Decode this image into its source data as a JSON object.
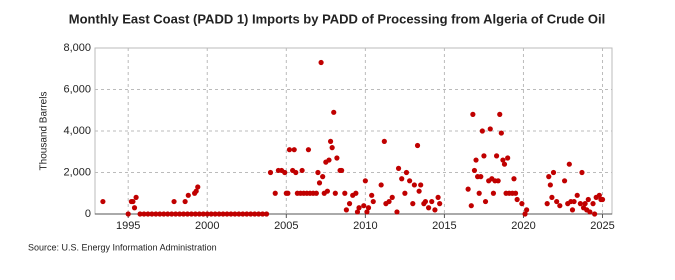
{
  "chart_data": {
    "type": "scatter",
    "title": "Monthly East Coast (PADD 1) Imports by PADD of Processing from Algeria of Crude Oil",
    "y_label": "Thousand Barrels",
    "source": "Source: U.S. Energy Information Administration",
    "grid": true,
    "xlim": [
      1992.9,
      2025.6
    ],
    "ylim": [
      0,
      8000
    ],
    "xticks": [
      1995,
      2000,
      2005,
      2010,
      2015,
      2020,
      2025
    ],
    "yticks": [
      0,
      {
        "value": 2000,
        "label": "2,000"
      },
      {
        "value": 4000,
        "label": "4,000"
      },
      {
        "value": 6000,
        "label": "6,000"
      },
      {
        "value": 8000,
        "label": "8,000"
      }
    ],
    "series": [
      {
        "color": "#c00000",
        "x": [
          1993.4,
          1995.0,
          1995.2,
          1995.3,
          1995.4,
          1995.5,
          1997.9,
          1998.6,
          1998.8,
          1999.2,
          1999.3,
          1999.4,
          1995.75,
          1996,
          1996.25,
          1996.5,
          1996.75,
          1997,
          1997.25,
          1997.5,
          1997.75,
          1998,
          1998.25,
          1998.5,
          1998.75,
          1999,
          1999.25,
          1999.5,
          1999.75,
          2000,
          2000.25,
          2000.5,
          2000.75,
          2001,
          2001.25,
          2001.5,
          2001.75,
          2002,
          2002.25,
          2002.5,
          2002.75,
          2003,
          2003.25,
          2003.5,
          2003.75,
          2004.0,
          2004.3,
          2004.5,
          2004.7,
          2004.9,
          2005.0,
          2005.1,
          2005.2,
          2005.4,
          2005.5,
          2005.6,
          2005.7,
          2005.9,
          2006.0,
          2006.1,
          2006.3,
          2006.4,
          2006.5,
          2006.7,
          2006.9,
          2007.0,
          2007.1,
          2007.2,
          2007.3,
          2007.4,
          2007.5,
          2007.6,
          2007.7,
          2007.8,
          2007.9,
          2008.0,
          2008.1,
          2008.2,
          2008.4,
          2008.5,
          2008.7,
          2008.8,
          2009.0,
          2009.2,
          2009.4,
          2009.5,
          2009.6,
          2009.9,
          2010.0,
          2010.1,
          2010.2,
          2010.4,
          2010.5,
          2011.0,
          2011.2,
          2011.3,
          2011.5,
          2011.7,
          2012.0,
          2012.1,
          2012.3,
          2012.5,
          2012.6,
          2012.8,
          2013.0,
          2013.1,
          2013.3,
          2013.4,
          2013.5,
          2013.7,
          2013.8,
          2014.0,
          2014.2,
          2014.4,
          2014.6,
          2014.7,
          2016.5,
          2016.7,
          2016.8,
          2016.9,
          2017.0,
          2017.1,
          2017.2,
          2017.3,
          2017.4,
          2017.5,
          2017.6,
          2017.8,
          2017.9,
          2018.0,
          2018.1,
          2018.2,
          2018.3,
          2018.4,
          2018.5,
          2018.6,
          2018.7,
          2018.8,
          2018.9,
          2019.0,
          2019.1,
          2019.3,
          2019.4,
          2019.5,
          2019.6,
          2019.9,
          2020.1,
          2020.2,
          2021.5,
          2021.6,
          2021.7,
          2021.8,
          2021.9,
          2022.1,
          2022.3,
          2022.6,
          2022.8,
          2022.9,
          2023.0,
          2023.1,
          2023.2,
          2023.4,
          2023.6,
          2023.7,
          2023.8,
          2023.9,
          2024.0,
          2024.1,
          2024.2,
          2024.4,
          2024.5,
          2024.6,
          2024.8,
          2024.9,
          2025.0
        ],
        "values": [
          600,
          0,
          600,
          600,
          300,
          800,
          600,
          600,
          900,
          1000,
          1100,
          1300,
          0,
          0,
          0,
          0,
          0,
          0,
          0,
          0,
          0,
          0,
          0,
          0,
          0,
          0,
          0,
          0,
          0,
          0,
          0,
          0,
          0,
          0,
          0,
          0,
          0,
          0,
          0,
          0,
          0,
          0,
          0,
          0,
          0,
          2000,
          1000,
          2100,
          2100,
          2000,
          1000,
          1000,
          3100,
          2100,
          3100,
          2000,
          1000,
          1000,
          2100,
          1000,
          1000,
          3100,
          1000,
          1000,
          1000,
          2000,
          1500,
          7300,
          1800,
          1000,
          2500,
          1100,
          2600,
          3500,
          3200,
          4900,
          1000,
          2700,
          2100,
          2100,
          1000,
          200,
          500,
          900,
          1000,
          100,
          300,
          400,
          1600,
          100,
          300,
          900,
          600,
          1400,
          3500,
          500,
          600,
          800,
          100,
          2200,
          1700,
          1000,
          2000,
          1600,
          500,
          1400,
          3300,
          1100,
          1400,
          500,
          600,
          300,
          600,
          200,
          800,
          500,
          1200,
          400,
          4800,
          2100,
          2600,
          1800,
          1000,
          1800,
          4000,
          2800,
          600,
          1600,
          4100,
          1700,
          1000,
          1600,
          2800,
          1600,
          4800,
          3900,
          2600,
          2400,
          1000,
          2700,
          1000,
          1000,
          1700,
          1000,
          700,
          500,
          0,
          200,
          500,
          1800,
          1400,
          800,
          2000,
          600,
          400,
          1600,
          500,
          2400,
          600,
          200,
          600,
          900,
          500,
          2000,
          300,
          500,
          200,
          700,
          100,
          500,
          0,
          800,
          900,
          700,
          700
        ]
      }
    ]
  }
}
